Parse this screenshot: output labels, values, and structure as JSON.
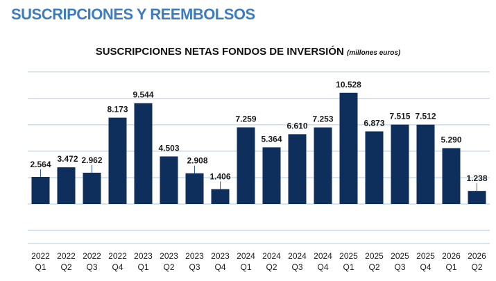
{
  "header": {
    "title": "SUSCRIPCIONES Y REEMBOLSOS"
  },
  "chart_data": {
    "type": "bar",
    "title": "SUSCRIPCIONES NETAS FONDOS DE INVERSIÓN",
    "unit": "millones euros",
    "xlabel": "",
    "ylabel": "",
    "grid": true,
    "ylim": [
      -2500,
      12500
    ],
    "categories": [
      [
        "2022",
        "Q1"
      ],
      [
        "2022",
        "Q2"
      ],
      [
        "2022",
        "Q3"
      ],
      [
        "2022",
        "Q4"
      ],
      [
        "2023",
        "Q1"
      ],
      [
        "2023",
        "Q2"
      ],
      [
        "2023",
        "Q3"
      ],
      [
        "2023",
        "Q4"
      ],
      [
        "2024",
        "Q1"
      ],
      [
        "2024",
        "Q2"
      ],
      [
        "2024",
        "Q3"
      ],
      [
        "2024",
        "Q4"
      ],
      [
        "2025",
        "Q1"
      ],
      [
        "2025",
        "Q2"
      ],
      [
        "2025",
        "Q3"
      ],
      [
        "2025",
        "Q4"
      ],
      [
        "2026",
        "Q1"
      ],
      [
        "2026",
        "Q2"
      ]
    ],
    "values": [
      2564,
      3472,
      2962,
      8173,
      9544,
      4503,
      2908,
      1406,
      7259,
      5364,
      6610,
      7253,
      10528,
      6873,
      7515,
      7512,
      5290,
      1238
    ],
    "value_labels": [
      "2.564",
      "3.472",
      "2.962",
      "8.173",
      "9.544",
      "4.503",
      "2.908",
      "1.406",
      "7.259",
      "5.364",
      "6.610",
      "7.253",
      "10.528",
      "6.873",
      "7.515",
      "7.512",
      "5.290",
      "1.238"
    ],
    "colors": {
      "bar": "#0e2e5c",
      "grid": "#aecbe6",
      "heading": "#3d7cc0"
    }
  }
}
